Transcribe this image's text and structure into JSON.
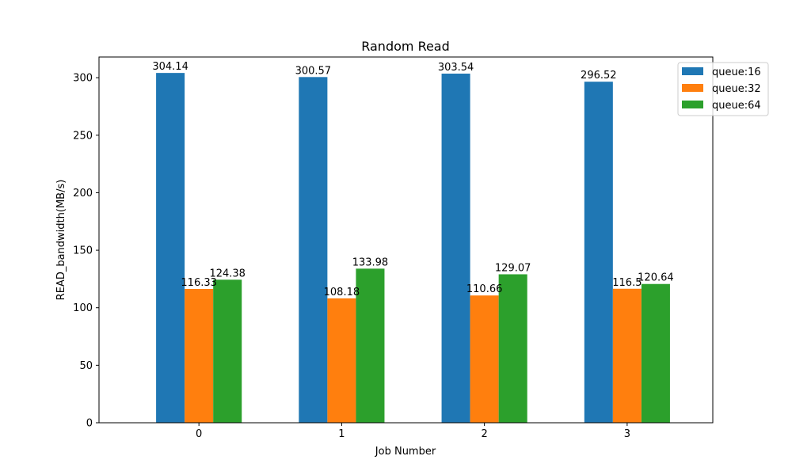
{
  "chart_data": {
    "type": "bar",
    "title": "Random Read",
    "xlabel": "Job Number",
    "ylabel": "READ_bandwidth(MB/s)",
    "categories": [
      "0",
      "1",
      "2",
      "3"
    ],
    "ylim": [
      0,
      318
    ],
    "yticks": [
      0,
      50,
      100,
      150,
      200,
      250,
      300
    ],
    "grid": false,
    "legend_position": "top-right",
    "series": [
      {
        "name": "queue:16",
        "color": "#1f77b4",
        "values": [
          304.14,
          300.57,
          303.54,
          296.52
        ]
      },
      {
        "name": "queue:32",
        "color": "#ff7f0e",
        "values": [
          116.33,
          108.18,
          110.66,
          116.5
        ]
      },
      {
        "name": "queue:64",
        "color": "#2ca02c",
        "values": [
          124.38,
          133.98,
          129.07,
          120.64
        ]
      }
    ]
  }
}
